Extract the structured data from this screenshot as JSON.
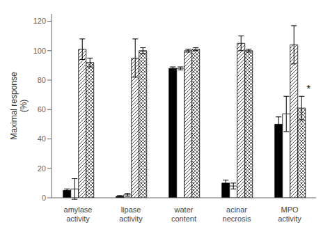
{
  "chart_data": {
    "type": "bar",
    "categories": [
      "amylase\nactivity",
      "lipase\nactivity",
      "water\ncontent",
      "acinar\nnecrosis",
      "MPO\nactivity"
    ],
    "series": [
      {
        "color": "#000000",
        "values": [
          5,
          1,
          88,
          10,
          50
        ],
        "errors": [
          1,
          0.5,
          1,
          2,
          5
        ]
      },
      {
        "color": "#ffffff",
        "values": [
          6,
          2,
          88,
          8,
          57
        ],
        "errors": [
          7,
          1,
          1,
          2,
          12
        ]
      },
      {
        "color": "#ffffff",
        "values": [
          101,
          95,
          100,
          105,
          104
        ],
        "errors": [
          7,
          13,
          1,
          5,
          13
        ]
      },
      {
        "color": "#ffffff",
        "values": [
          92,
          100,
          101,
          100,
          61
        ],
        "errors": [
          3,
          2,
          1,
          1,
          8
        ]
      }
    ],
    "ylabel": "Maximal response\n(%)",
    "ylim": [
      0,
      125
    ],
    "yticks": [
      0,
      20,
      40,
      60,
      80,
      100,
      120
    ],
    "grid": false,
    "annotations": [
      {
        "text": "*",
        "x": "MPO\nactivity",
        "y": 72
      }
    ]
  }
}
